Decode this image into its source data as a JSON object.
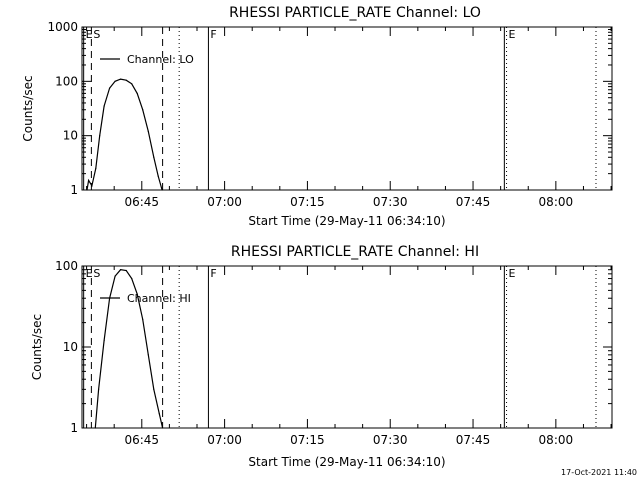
{
  "footer": {
    "timestamp": "17-Oct-2021 11:40"
  },
  "chart_data": [
    {
      "type": "line",
      "title": "RHESSI PARTICLE_RATE Channel: LO",
      "xlabel": "Start Time (29-May-11 06:34:10)",
      "ylabel": "Counts/sec",
      "x_unit": "minutes since 06:34:10",
      "xlim": [
        0,
        96
      ],
      "ylim": [
        1,
        1000
      ],
      "yscale": "log",
      "x_ticks": [
        {
          "value": 10.83,
          "label": "06:45"
        },
        {
          "value": 25.83,
          "label": "07:00"
        },
        {
          "value": 40.83,
          "label": "07:15"
        },
        {
          "value": 55.83,
          "label": "07:30"
        },
        {
          "value": 70.83,
          "label": "07:45"
        },
        {
          "value": 85.83,
          "label": "08:00"
        }
      ],
      "y_ticks": [
        {
          "value": 1,
          "label": "1"
        },
        {
          "value": 10,
          "label": "10"
        },
        {
          "value": 100,
          "label": "100"
        },
        {
          "value": 1000,
          "label": "1000"
        }
      ],
      "markers": [
        {
          "label": "E",
          "x": 0.3,
          "style": "solid"
        },
        {
          "label": "S",
          "x": 1.7,
          "style": "dashed"
        },
        {
          "label": "",
          "x": 14.6,
          "style": "dashed"
        },
        {
          "label": "",
          "x": 17.6,
          "style": "dotted"
        },
        {
          "label": "F",
          "x": 22.9,
          "style": "solid"
        },
        {
          "label": "",
          "x": 76.5,
          "style": "solid"
        },
        {
          "label": "E",
          "x": 76.9,
          "style": "dotted"
        },
        {
          "label": "",
          "x": 93.1,
          "style": "dotted"
        }
      ],
      "legend": {
        "label": "Channel: LO",
        "position": "top-left"
      },
      "series": [
        {
          "name": "Channel: LO",
          "x": [
            0.9,
            1.2,
            1.8,
            2.5,
            3.2,
            4.0,
            5.0,
            6.0,
            7.0,
            8.0,
            9.0,
            10.0,
            11.0,
            12.0,
            13.0,
            13.8,
            14.5
          ],
          "y": [
            1.0,
            1.5,
            1.2,
            2.5,
            10,
            35,
            75,
            100,
            110,
            105,
            90,
            60,
            30,
            12,
            4,
            1.8,
            1.0
          ]
        }
      ]
    },
    {
      "type": "line",
      "title": "RHESSI PARTICLE_RATE Channel: HI",
      "xlabel": "Start Time (29-May-11 06:34:10)",
      "ylabel": "Counts/sec",
      "x_unit": "minutes since 06:34:10",
      "xlim": [
        0,
        96
      ],
      "ylim": [
        1,
        100
      ],
      "yscale": "log",
      "x_ticks": [
        {
          "value": 10.83,
          "label": "06:45"
        },
        {
          "value": 25.83,
          "label": "07:00"
        },
        {
          "value": 40.83,
          "label": "07:15"
        },
        {
          "value": 55.83,
          "label": "07:30"
        },
        {
          "value": 70.83,
          "label": "07:45"
        },
        {
          "value": 85.83,
          "label": "08:00"
        }
      ],
      "y_ticks": [
        {
          "value": 1,
          "label": "1"
        },
        {
          "value": 10,
          "label": "10"
        },
        {
          "value": 100,
          "label": "100"
        }
      ],
      "markers": [
        {
          "label": "E",
          "x": 0.3,
          "style": "solid"
        },
        {
          "label": "S",
          "x": 1.7,
          "style": "dashed"
        },
        {
          "label": "",
          "x": 14.6,
          "style": "dashed"
        },
        {
          "label": "",
          "x": 17.6,
          "style": "dotted"
        },
        {
          "label": "F",
          "x": 22.9,
          "style": "solid"
        },
        {
          "label": "",
          "x": 76.5,
          "style": "solid"
        },
        {
          "label": "E",
          "x": 76.9,
          "style": "dotted"
        },
        {
          "label": "",
          "x": 93.1,
          "style": "dotted"
        }
      ],
      "legend": {
        "label": "Channel: HI",
        "position": "top-left"
      },
      "series": [
        {
          "name": "Channel: HI",
          "x": [
            2.4,
            3.0,
            4.0,
            5.0,
            6.0,
            7.0,
            8.0,
            9.0,
            10.0,
            11.0,
            12.0,
            13.0,
            14.0,
            14.6
          ],
          "y": [
            1.0,
            3.0,
            12,
            40,
            75,
            90,
            88,
            70,
            45,
            22,
            8,
            3,
            1.5,
            1.0
          ]
        }
      ]
    }
  ]
}
